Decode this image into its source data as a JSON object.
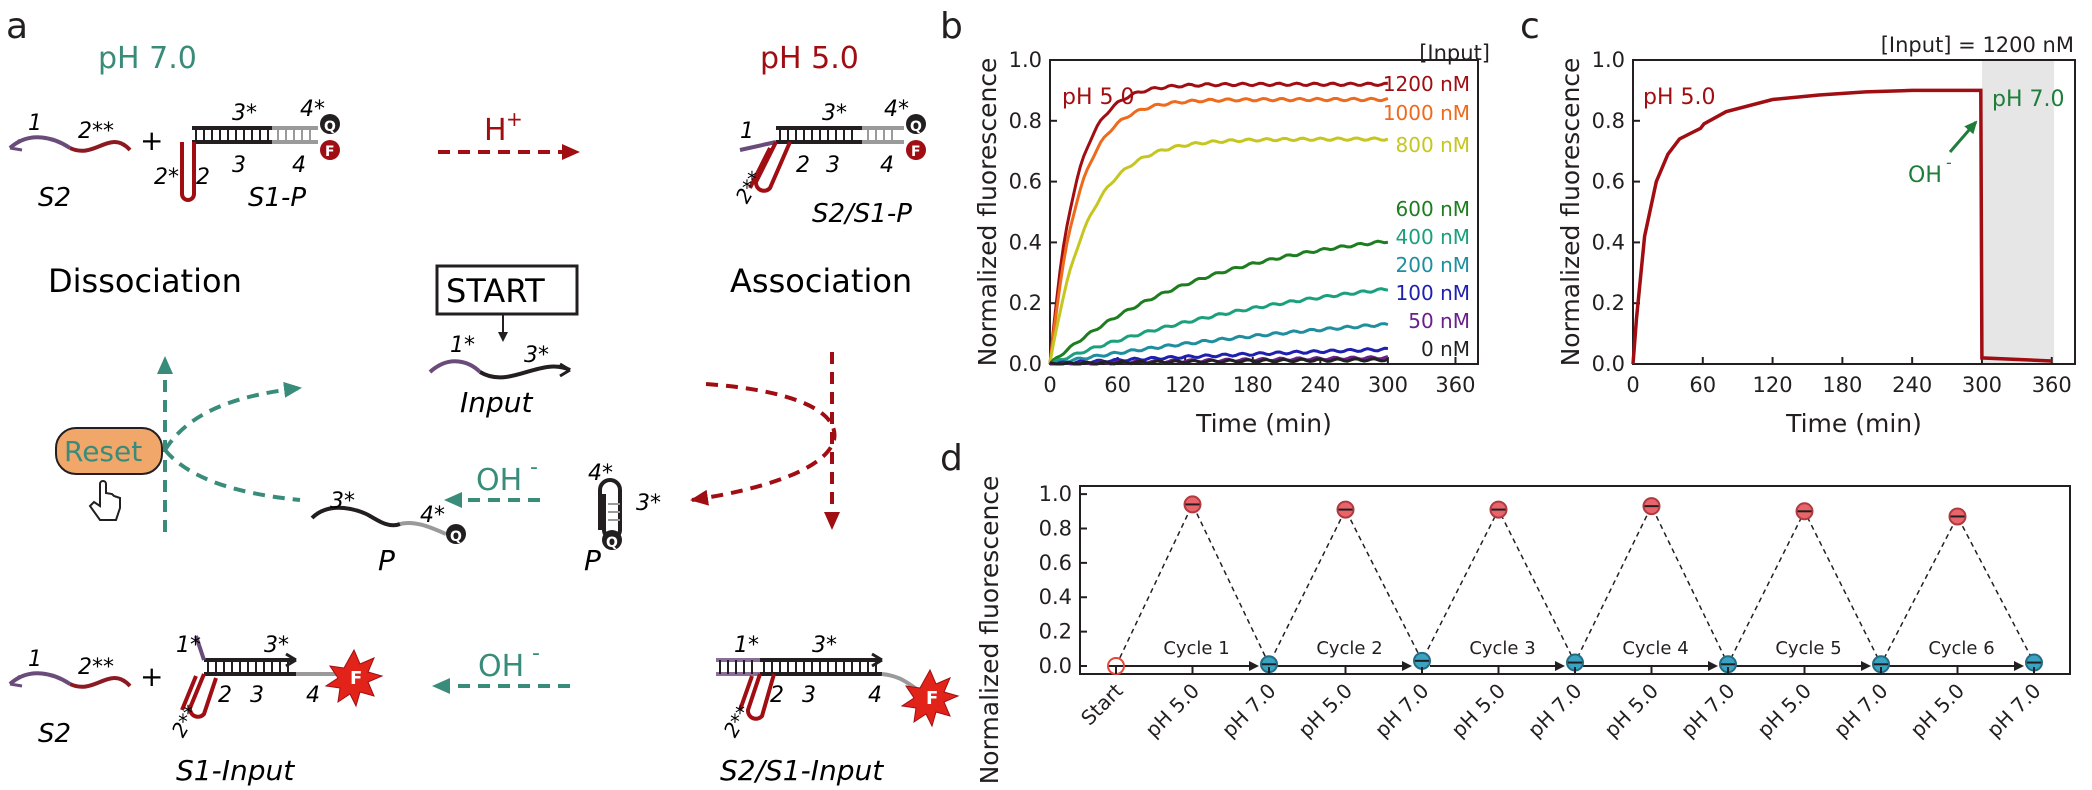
{
  "panel_a": {
    "panel_label": "a",
    "ph_left": "pH 7.0",
    "ph_right": "pH 5.0",
    "hplus": "H",
    "hplus_sup": "+",
    "dissociation": "Dissociation",
    "association": "Association",
    "start": "START",
    "reset": "Reset",
    "oh_mid": "OH",
    "oh_bottom": "OH",
    "oh_sup": "-",
    "plus": "+",
    "names": {
      "s2": "S2",
      "s1p": "S1-P",
      "s2s1p": "S2/S1-P",
      "input": "Input",
      "p_left": "P",
      "p_right": "P",
      "s2b": "S2",
      "s1input": "S1-Input",
      "s2s1input": "S2/S1-Input"
    },
    "domains": {
      "d1": "1",
      "d2ss": "2**",
      "d2s": "2*",
      "d2": "2",
      "d3s": "3*",
      "d3": "3",
      "d4s": "4*",
      "d4": "4",
      "d1s": "1*",
      "q": "Q",
      "f": "F"
    }
  },
  "chart_data": [
    {
      "type": "line",
      "panel_label": "b",
      "xlabel": "Time (min)",
      "ylabel": "Normalized fluorescence",
      "xlim": [
        0,
        380
      ],
      "ylim": [
        0,
        1.0
      ],
      "xticks": [
        "0",
        "60",
        "120",
        "180",
        "240",
        "300",
        "360"
      ],
      "yticks": [
        "0.0",
        "0.2",
        "0.4",
        "0.6",
        "0.8",
        "1.0"
      ],
      "annotation": "pH 5.0",
      "legend_title": "[Input]",
      "legend_placement": "right, inside plot",
      "grid": false,
      "series": [
        {
          "name": "1200 nM",
          "color": "#a00d12",
          "plateau": 0.92,
          "k": 0.045
        },
        {
          "name": "1000 nM",
          "color": "#ee6a1c",
          "plateau": 0.87,
          "k": 0.04
        },
        {
          "name": "800 nM",
          "color": "#c6c621",
          "plateau": 0.74,
          "k": 0.03
        },
        {
          "name": "600 nM",
          "color": "#1e7d1e",
          "plateau": 0.46,
          "k": 0.007
        },
        {
          "name": "400 nM",
          "color": "#1aa07c",
          "plateau": 0.34,
          "k": 0.0043
        },
        {
          "name": "200 nM",
          "color": "#1f8e9e",
          "plateau": 0.22,
          "k": 0.003
        },
        {
          "name": "100 nM",
          "color": "#1f1fb0",
          "plateau": 0.1,
          "k": 0.0022
        },
        {
          "name": "50 nM",
          "color": "#6a1f8c",
          "plateau": 0.05,
          "k": 0.0018
        },
        {
          "name": "0 nM",
          "color": "#222222",
          "plateau": 0.02,
          "k": 0.004
        }
      ]
    },
    {
      "type": "line",
      "panel_label": "c",
      "title": "[Input] = 1200 nM",
      "xlabel": "Time (min)",
      "ylabel": "Normalized fluorescence",
      "xlim": [
        0,
        380
      ],
      "ylim": [
        0,
        1.0
      ],
      "xticks": [
        "0",
        "60",
        "120",
        "180",
        "240",
        "300",
        "360"
      ],
      "yticks": [
        "0.0",
        "0.2",
        "0.4",
        "0.6",
        "0.8",
        "1.0"
      ],
      "annotation_left": "pH 5.0",
      "annotation_right": "pH 7.0",
      "arrow_label": "OH",
      "arrow_label_sup": "-",
      "shaded_region": [
        300,
        362
      ],
      "series": [
        {
          "name": "1200 nM",
          "color": "#a00d12",
          "points": [
            [
              0,
              0.0
            ],
            [
              3,
              0.15
            ],
            [
              10,
              0.42
            ],
            [
              20,
              0.6
            ],
            [
              30,
              0.69
            ],
            [
              40,
              0.74
            ],
            [
              50,
              0.76
            ],
            [
              58,
              0.775
            ],
            [
              61,
              0.79
            ],
            [
              80,
              0.83
            ],
            [
              120,
              0.87
            ],
            [
              160,
              0.885
            ],
            [
              200,
              0.895
            ],
            [
              240,
              0.9
            ],
            [
              299,
              0.9
            ],
            [
              300,
              0.02
            ],
            [
              360,
              0.01
            ]
          ]
        }
      ]
    },
    {
      "type": "scatter",
      "panel_label": "d",
      "ylabel": "Normalized fluorescence",
      "ylim": [
        0,
        1.05
      ],
      "yticks": [
        "0.0",
        "0.2",
        "0.4",
        "0.6",
        "0.8",
        "1.0"
      ],
      "categories": [
        "Start",
        "pH 5.0",
        "pH 7.0",
        "pH 5.0",
        "pH 7.0",
        "pH 5.0",
        "pH 7.0",
        "pH 5.0",
        "pH 7.0",
        "pH 5.0",
        "pH 7.0",
        "pH 5.0",
        "pH 7.0"
      ],
      "values": [
        0.0,
        0.94,
        0.01,
        0.91,
        0.03,
        0.91,
        0.02,
        0.93,
        0.01,
        0.9,
        0.01,
        0.87,
        0.02
      ],
      "cycles": [
        "Cycle 1",
        "Cycle 2",
        "Cycle 3",
        "Cycle 4",
        "Cycle 5",
        "Cycle 6"
      ],
      "colors": {
        "start": "#e8453c",
        "acid": "#e8666b",
        "neutral": "#3aa3c2"
      }
    }
  ],
  "colors": {
    "teal": "#3a8c7a",
    "darkred": "#a00d12",
    "reset_fill": "#f1a76a"
  }
}
